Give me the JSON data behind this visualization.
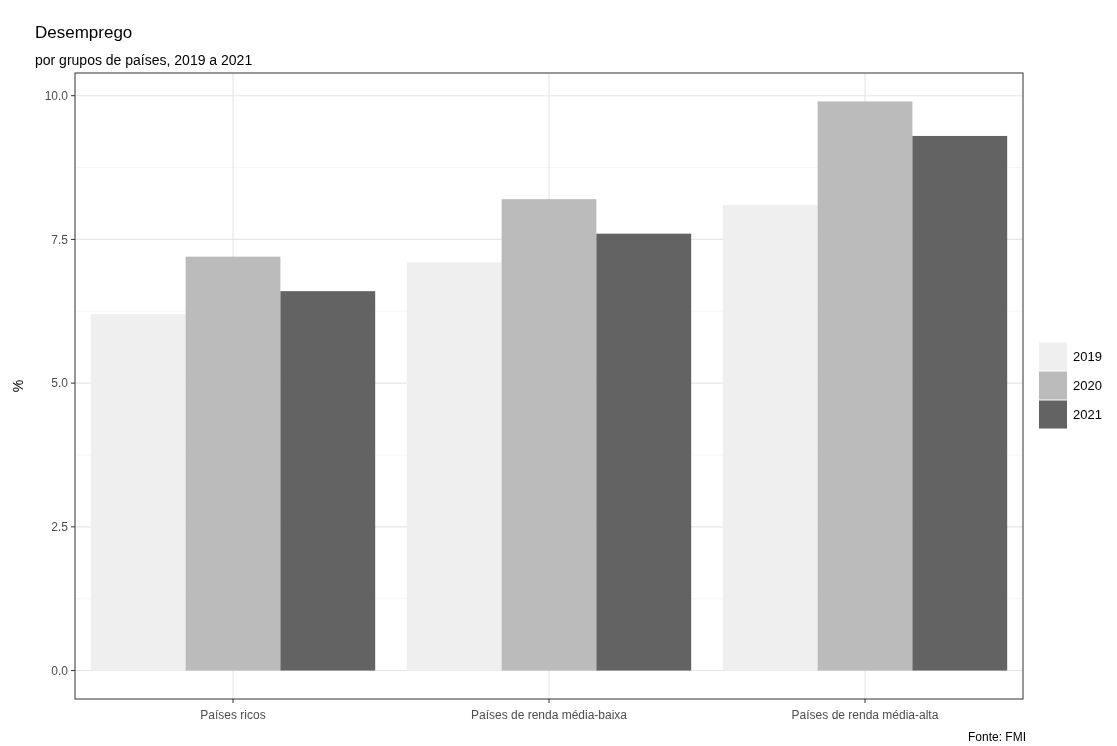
{
  "chart_data": {
    "type": "bar",
    "title": "Desemprego",
    "subtitle": "por grupos de países, 2019 a 2021",
    "ylabel": "%",
    "categories": [
      "Países ricos",
      "Países de renda média-baixa",
      "Países de renda média-alta"
    ],
    "series": [
      {
        "name": "2019",
        "color": "#efefef",
        "values": [
          6.2,
          7.1,
          8.1
        ]
      },
      {
        "name": "2020",
        "color": "#bbbbbb",
        "values": [
          7.2,
          8.2,
          9.9
        ]
      },
      {
        "name": "2021",
        "color": "#636363",
        "values": [
          6.6,
          7.6,
          9.3
        ]
      }
    ],
    "ylim": [
      -0.495,
      10.395
    ],
    "yticks": [
      {
        "value": 0,
        "label": "0.0"
      },
      2.5,
      {
        "value": 5,
        "label": "5.0"
      },
      7.5,
      {
        "value": 10,
        "label": "10.0"
      }
    ],
    "grid": true,
    "legend": "right",
    "annotations": [
      "Fonte: FMI"
    ]
  }
}
